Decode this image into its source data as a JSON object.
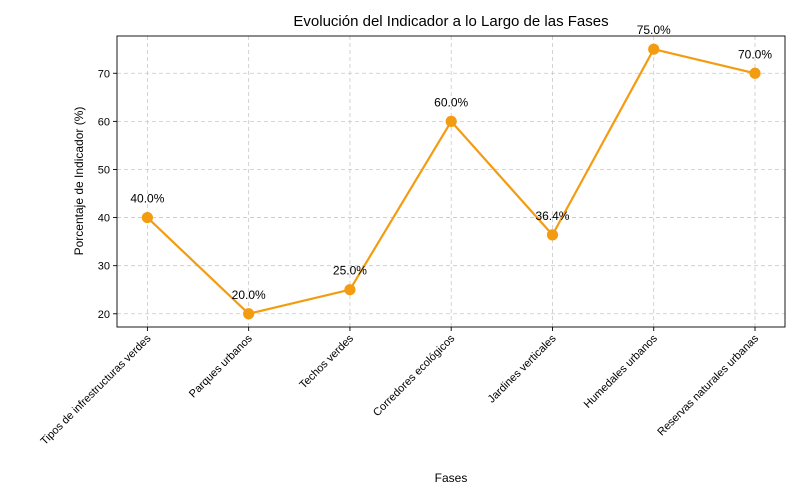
{
  "chart_data": {
    "type": "line",
    "title": "Evolución del Indicador a lo Largo de las Fases",
    "xlabel": "Fases",
    "ylabel": "Porcentaje de Indicador (%)",
    "categories": [
      "Tipos de infrestructuras verdes",
      "Parques urbanos",
      "Techos verdes",
      "Corredores ecológicos",
      "Jardines verticales",
      "Humedales urbanos",
      "Reservas naturales urbanas"
    ],
    "series": [
      {
        "values": [
          40.0,
          20.0,
          25.0,
          60.0,
          36.4,
          75.0,
          70.0
        ],
        "color": "#f39c12",
        "labels": [
          "40.0%",
          "20.0%",
          "25.0%",
          "60.0%",
          "36.4%",
          "75.0%",
          "70.0%"
        ]
      }
    ],
    "yticks": [
      20,
      30,
      40,
      50,
      60,
      70
    ],
    "ylim": [
      17.25,
      77.75
    ],
    "grid": true
  }
}
